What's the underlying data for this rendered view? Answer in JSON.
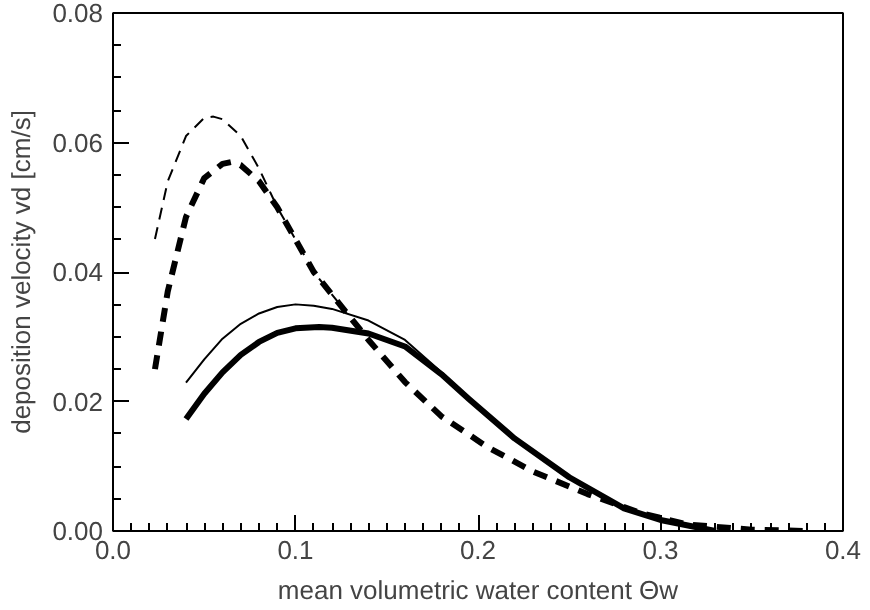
{
  "chart_data": {
    "type": "line",
    "xlabel": "mean volumetric water content Θw",
    "ylabel": "deposition velocity vd [cm/s]",
    "xlim": [
      0.0,
      0.4
    ],
    "xticks": [
      {
        "value": 0,
        "label": "0.0"
      },
      0.1,
      0.2,
      0.3,
      0.4
    ],
    "ylim": [
      0.0,
      0.08
    ],
    "yticks": [
      {
        "value": 0,
        "label": "0.00"
      },
      0.02,
      0.04,
      0.06,
      0.08
    ],
    "marker": "none",
    "series": [
      {
        "color": "#000000",
        "line_style": "dashed",
        "x": [
          0.023,
          0.03,
          0.04,
          0.05,
          0.055,
          0.06,
          0.07,
          0.08,
          0.09,
          0.1,
          0.11,
          0.128
        ],
        "values": [
          0.0451,
          0.054,
          0.061,
          0.0638,
          0.064,
          0.0636,
          0.061,
          0.056,
          0.05,
          0.045,
          0.04,
          0.0337
        ]
      },
      {
        "color": "#000000",
        "line_style": "dashed",
        "x": [
          0.023,
          0.03,
          0.04,
          0.05,
          0.06,
          0.065,
          0.07,
          0.08,
          0.09,
          0.1,
          0.11,
          0.128,
          0.14,
          0.16,
          0.18,
          0.205,
          0.23,
          0.26,
          0.29,
          0.315,
          0.35,
          0.38
        ],
        "values": [
          0.025,
          0.037,
          0.0485,
          0.0545,
          0.0567,
          0.057,
          0.0565,
          0.054,
          0.05,
          0.045,
          0.04,
          0.0337,
          0.0295,
          0.023,
          0.0177,
          0.013,
          0.0092,
          0.0057,
          0.0027,
          0.001,
          0.0002,
          0.0
        ]
      },
      {
        "color": "#000000",
        "line_style": "solid",
        "x": [
          0.04,
          0.05,
          0.06,
          0.07,
          0.08,
          0.09,
          0.1,
          0.11,
          0.12,
          0.14,
          0.16,
          0.18,
          0.195,
          0.22,
          0.25,
          0.28,
          0.3,
          0.33
        ],
        "values": [
          0.0229,
          0.0265,
          0.0297,
          0.032,
          0.0336,
          0.0346,
          0.035,
          0.0348,
          0.0343,
          0.0325,
          0.0295,
          0.0245,
          0.0206,
          0.0145,
          0.0083,
          0.0035,
          0.0017,
          0.0
        ]
      },
      {
        "color": "#000000",
        "line_style": "solid",
        "x": [
          0.04,
          0.05,
          0.06,
          0.07,
          0.08,
          0.09,
          0.1,
          0.113,
          0.12,
          0.14,
          0.16,
          0.18,
          0.195,
          0.22,
          0.25,
          0.28,
          0.3,
          0.33
        ],
        "values": [
          0.0173,
          0.0212,
          0.0245,
          0.0272,
          0.0292,
          0.0306,
          0.0313,
          0.0315,
          0.0314,
          0.0305,
          0.0285,
          0.0242,
          0.0204,
          0.0143,
          0.0083,
          0.0035,
          0.0017,
          0.0
        ]
      }
    ]
  }
}
